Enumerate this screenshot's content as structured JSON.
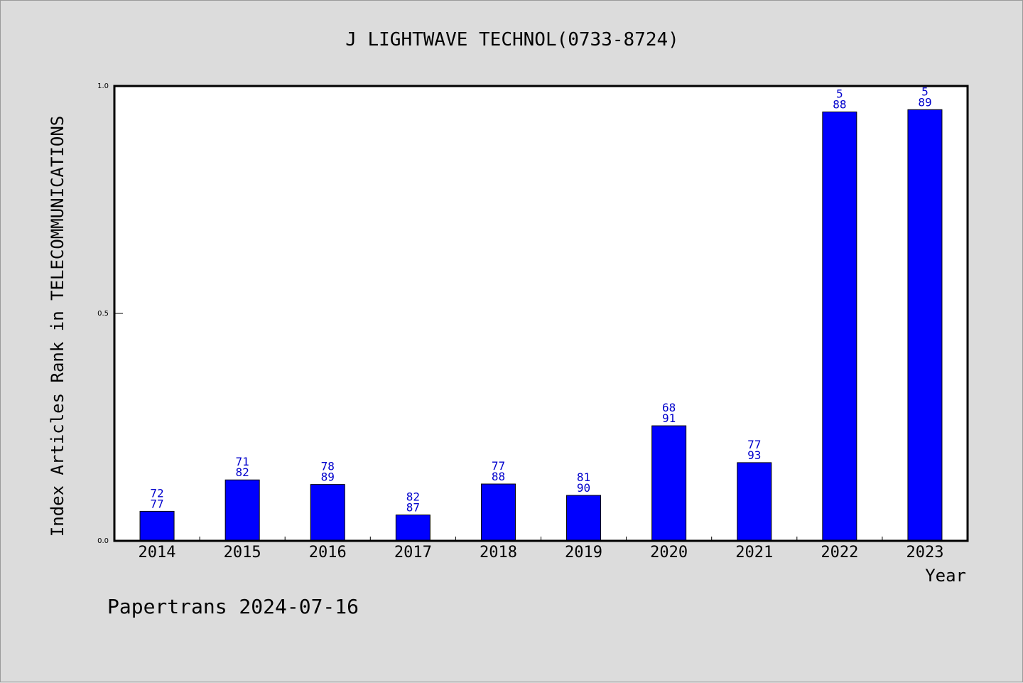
{
  "chart_data": {
    "type": "bar",
    "title": "J LIGHTWAVE TECHNOL(0733-8724)",
    "xlabel": "Year",
    "ylabel": "Index Articles Rank in TELECOMMUNICATIONS",
    "categories": [
      "2014",
      "2015",
      "2016",
      "2017",
      "2018",
      "2019",
      "2020",
      "2021",
      "2022",
      "2023"
    ],
    "values": [
      0.065,
      0.134,
      0.124,
      0.057,
      0.125,
      0.1,
      0.253,
      0.172,
      0.943,
      0.948
    ],
    "rank": [
      "72",
      "71",
      "78",
      "82",
      "77",
      "81",
      "68",
      "77",
      "5",
      "5"
    ],
    "total": [
      "77",
      "82",
      "89",
      "87",
      "88",
      "90",
      "91",
      "93",
      "88",
      "89"
    ],
    "ylim": [
      0.0,
      1.0
    ],
    "yticks": [
      "0.0",
      "0.5",
      "1.0"
    ],
    "bar_color": "#0000ff",
    "label_color": "#0000cc",
    "grid": false,
    "legend": "none"
  },
  "footer": "Papertrans 2024-07-16"
}
